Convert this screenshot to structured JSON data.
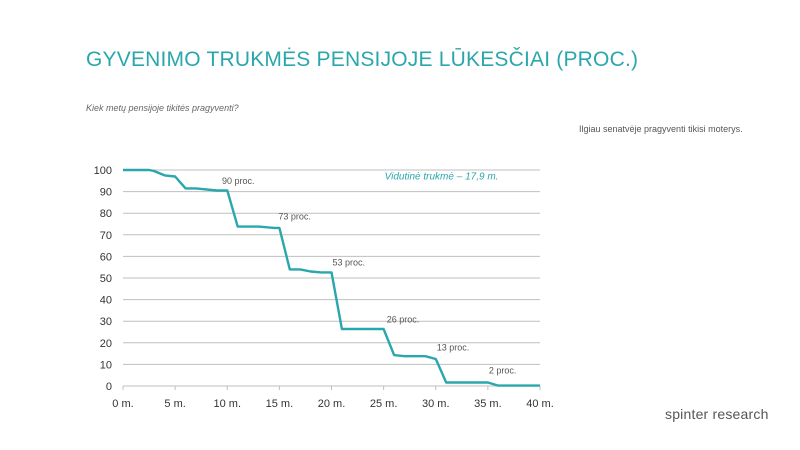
{
  "header": {
    "title": "GYVENIMO TRUKMĖS PENSIJOJE LŪKESČIAI (PROC.)",
    "subtitle": "Kiek metų pensijoje tikitės pragyventi?"
  },
  "note": "Ilgiau senatvėje pragyventi tikisi moterys.",
  "brand": "spinter research",
  "colors": {
    "line": "#2aa7ad",
    "grid": "#bfbfbf",
    "title": "#2aa7ad",
    "annotation": "#2aa7ad"
  },
  "chart_data": {
    "type": "line",
    "title": "",
    "xlabel": "",
    "ylabel": "",
    "xlim": [
      0,
      40
    ],
    "ylim": [
      0,
      100
    ],
    "x_ticks": [
      {
        "value": 0,
        "label": "0 m."
      },
      {
        "value": 5,
        "label": "5 m."
      },
      {
        "value": 10,
        "label": "10 m."
      },
      {
        "value": 15,
        "label": "15 m."
      },
      {
        "value": 20,
        "label": "20 m."
      },
      {
        "value": 25,
        "label": "25 m."
      },
      {
        "value": 30,
        "label": "30 m."
      },
      {
        "value": 35,
        "label": "35 m."
      },
      {
        "value": 40,
        "label": "40 m."
      }
    ],
    "y_ticks": [
      0,
      10,
      20,
      30,
      40,
      50,
      60,
      70,
      80,
      90,
      100
    ],
    "grid": "horizontal",
    "series": [
      {
        "x": [
          0,
          2.5,
          3,
          4,
          5,
          6,
          7,
          9,
          10,
          11,
          12,
          13,
          14.5,
          15,
          16,
          17,
          18,
          19,
          20,
          21,
          22,
          25,
          26,
          27,
          29,
          30,
          31,
          35,
          36,
          40
        ],
        "y": [
          100,
          100,
          99.5,
          97.5,
          97,
          91.5,
          91.5,
          90.5,
          90.5,
          73.8,
          73.8,
          73.8,
          73.2,
          73.2,
          54,
          54,
          53,
          52.6,
          52.6,
          26.4,
          26.4,
          26.4,
          14.3,
          13.8,
          13.8,
          12.5,
          1.6,
          1.6,
          0.2,
          0.2
        ]
      }
    ],
    "annotations": [
      {
        "text": "90 proc.",
        "x": 9.5,
        "y": 93.5
      },
      {
        "text": "73 proc.",
        "x": 14.9,
        "y": 77
      },
      {
        "text": "53 proc.",
        "x": 20.1,
        "y": 55.8
      },
      {
        "text": "26 proc.",
        "x": 25.3,
        "y": 29.5
      },
      {
        "text": "13 proc.",
        "x": 30.1,
        "y": 16.5
      },
      {
        "text": "2 proc.",
        "x": 35.1,
        "y": 5.8
      }
    ],
    "callout": {
      "text": "Vidutinė trukmė – 17,9 m.",
      "x": 25.1,
      "y": 95.5
    }
  }
}
